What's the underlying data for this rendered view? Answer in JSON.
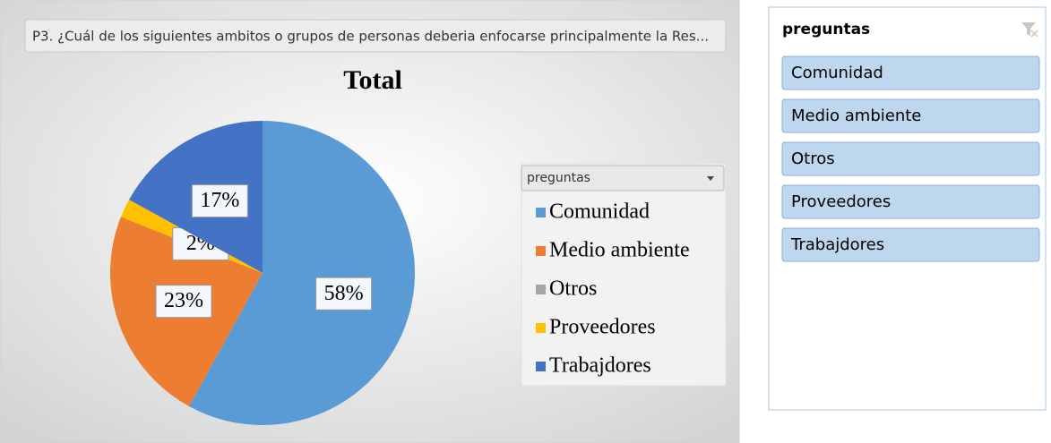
{
  "header_field": "P3. ¿Cuál de los siguientes ambitos o grupos de personas deberia enfocarse principalmente la Res...",
  "chart_data": {
    "type": "pie",
    "title": "Total",
    "legend_title": "preguntas",
    "categories": [
      "Comunidad",
      "Medio ambiente",
      "Otros",
      "Proveedores",
      "Trabajdores"
    ],
    "values": [
      58,
      23,
      0,
      2,
      17
    ],
    "value_labels": [
      "58%",
      "23%",
      null,
      "2%",
      "17%"
    ],
    "colors": [
      "#5b9bd5",
      "#ed7d31",
      "#a5a5a5",
      "#ffc000",
      "#4472c4"
    ],
    "legend": "right"
  },
  "slicer": {
    "title": "preguntas",
    "items": [
      "Comunidad",
      "Medio ambiente",
      "Otros",
      "Proveedores",
      "Trabajdores"
    ]
  }
}
